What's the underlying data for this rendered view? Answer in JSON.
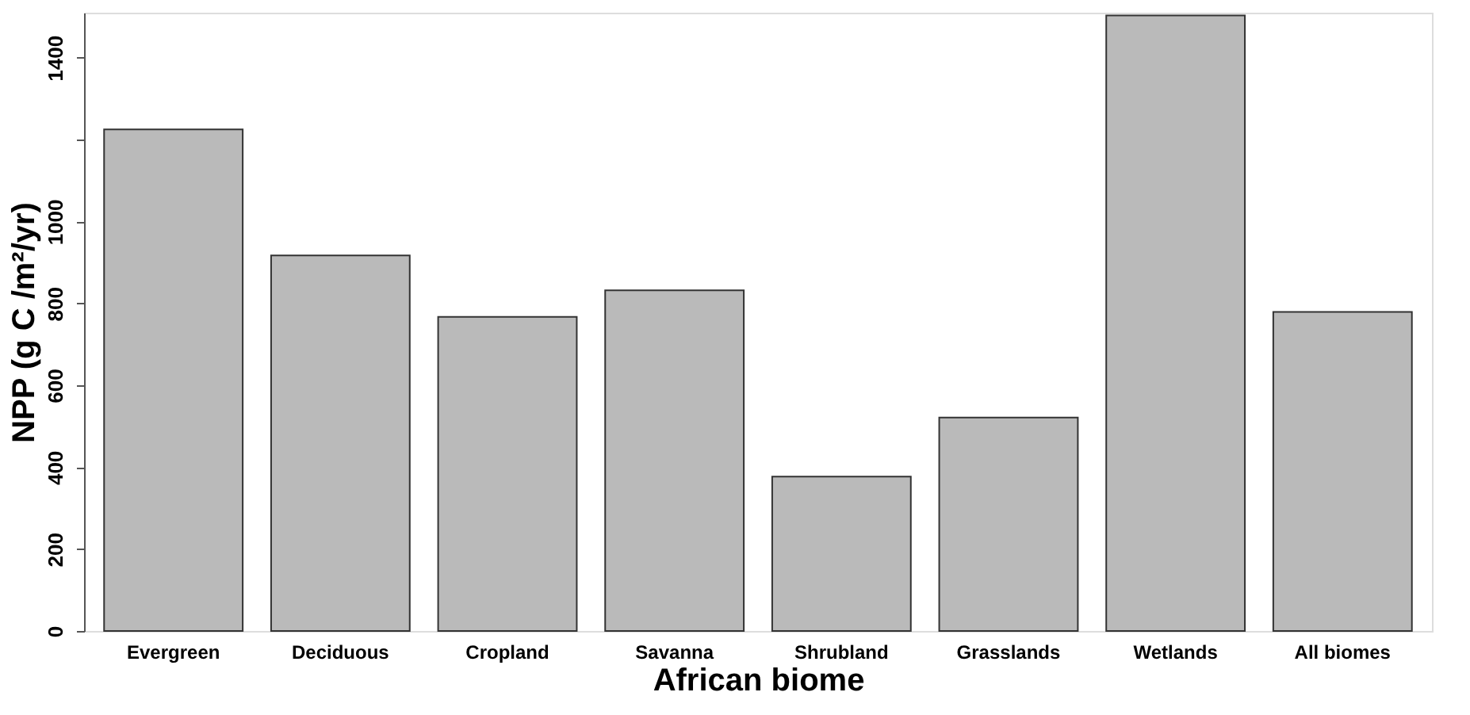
{
  "chart_data": {
    "type": "bar",
    "xlabel": "African biome",
    "ylabel": "NPP (g C /m²/yr)",
    "categories": [
      "Evergreen",
      "Deciduous",
      "Cropland",
      "Savanna",
      "Shrubland",
      "Grasslands",
      "Wetlands",
      "All biomes"
    ],
    "values": [
      1225,
      917,
      767,
      832,
      377,
      521,
      1503,
      779
    ],
    "color": "#bababa",
    "ylim": [
      0,
      1510
    ],
    "yticks": [
      0,
      200,
      400,
      600,
      800,
      1000,
      {
        "value": 1200,
        "label": null
      },
      1400
    ],
    "grid": false
  }
}
